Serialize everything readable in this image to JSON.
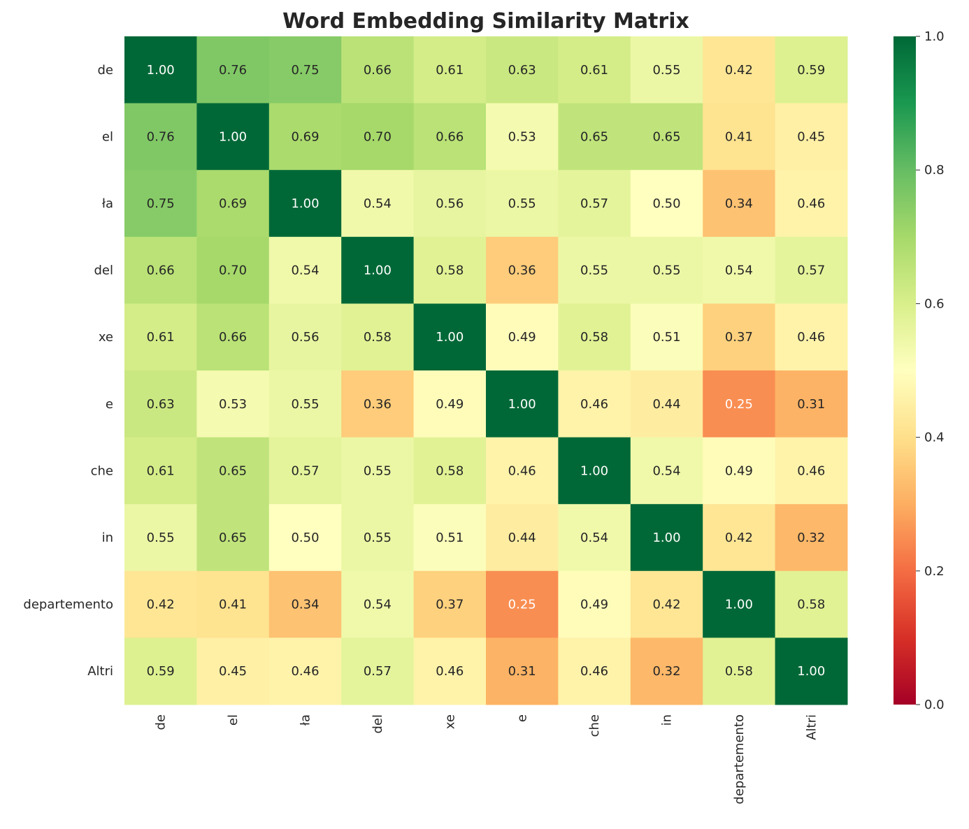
{
  "chart_data": {
    "type": "heatmap",
    "title": "Word Embedding Similarity Matrix",
    "colormap": "RdYlGn",
    "vmin": 0.0,
    "vmax": 1.0,
    "x_labels": [
      "de",
      "el",
      "ła",
      "del",
      "xe",
      "e",
      "che",
      "in",
      "departemento",
      "Altri"
    ],
    "y_labels": [
      "de",
      "el",
      "ła",
      "del",
      "xe",
      "e",
      "che",
      "in",
      "departemento",
      "Altri"
    ],
    "colorbar_ticks": [
      "0.0",
      "0.2",
      "0.4",
      "0.6",
      "0.8",
      "1.0"
    ],
    "values": [
      [
        1.0,
        0.76,
        0.75,
        0.66,
        0.61,
        0.63,
        0.61,
        0.55,
        0.42,
        0.59
      ],
      [
        0.76,
        1.0,
        0.69,
        0.7,
        0.66,
        0.53,
        0.65,
        0.65,
        0.41,
        0.45
      ],
      [
        0.75,
        0.69,
        1.0,
        0.54,
        0.56,
        0.55,
        0.57,
        0.5,
        0.34,
        0.46
      ],
      [
        0.66,
        0.7,
        0.54,
        1.0,
        0.58,
        0.36,
        0.55,
        0.55,
        0.54,
        0.57
      ],
      [
        0.61,
        0.66,
        0.56,
        0.58,
        1.0,
        0.49,
        0.58,
        0.51,
        0.37,
        0.46
      ],
      [
        0.63,
        0.53,
        0.55,
        0.36,
        0.49,
        1.0,
        0.46,
        0.44,
        0.25,
        0.31
      ],
      [
        0.61,
        0.65,
        0.57,
        0.55,
        0.58,
        0.46,
        1.0,
        0.54,
        0.49,
        0.46
      ],
      [
        0.55,
        0.65,
        0.5,
        0.55,
        0.51,
        0.44,
        0.54,
        1.0,
        0.42,
        0.32
      ],
      [
        0.42,
        0.41,
        0.34,
        0.54,
        0.37,
        0.25,
        0.49,
        0.42,
        1.0,
        0.58
      ],
      [
        0.59,
        0.45,
        0.46,
        0.57,
        0.46,
        0.31,
        0.46,
        0.32,
        0.58,
        1.0
      ]
    ],
    "annotation_format": "0.00"
  }
}
